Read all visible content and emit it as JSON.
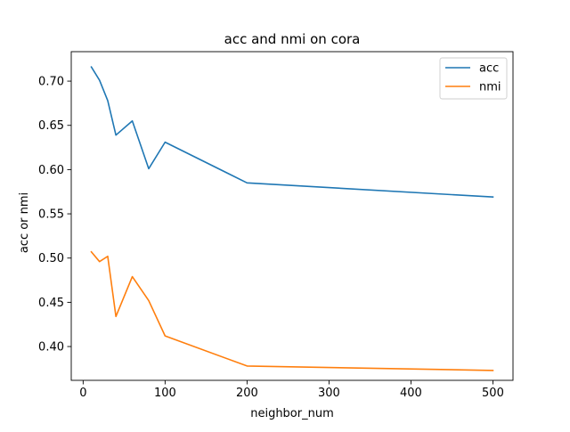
{
  "chart_data": {
    "type": "line",
    "title": "acc and nmi on cora",
    "xlabel": "neighbor_num",
    "ylabel": "acc or nmi",
    "xlim": [
      -14.5,
      524.5
    ],
    "ylim": [
      0.3618,
      0.7333
    ],
    "xticks": [
      0,
      100,
      200,
      300,
      400,
      500
    ],
    "xtick_labels": [
      "0",
      "100",
      "200",
      "300",
      "400",
      "500"
    ],
    "yticks": [
      0.4,
      0.45,
      0.5,
      0.55,
      0.6,
      0.65,
      0.7
    ],
    "ytick_labels": [
      "0.40",
      "0.45",
      "0.50",
      "0.55",
      "0.60",
      "0.65",
      "0.70"
    ],
    "grid": false,
    "legend_position": "top-right",
    "x": [
      10,
      20,
      30,
      40,
      60,
      80,
      100,
      200,
      500
    ],
    "series": [
      {
        "name": "acc",
        "color": "#1f77b4",
        "values": [
          0.716,
          0.701,
          0.678,
          0.639,
          0.655,
          0.601,
          0.631,
          0.585,
          0.569
        ]
      },
      {
        "name": "nmi",
        "color": "#ff7f0e",
        "values": [
          0.507,
          0.496,
          0.502,
          0.434,
          0.479,
          0.452,
          0.412,
          0.378,
          0.373
        ]
      }
    ]
  }
}
